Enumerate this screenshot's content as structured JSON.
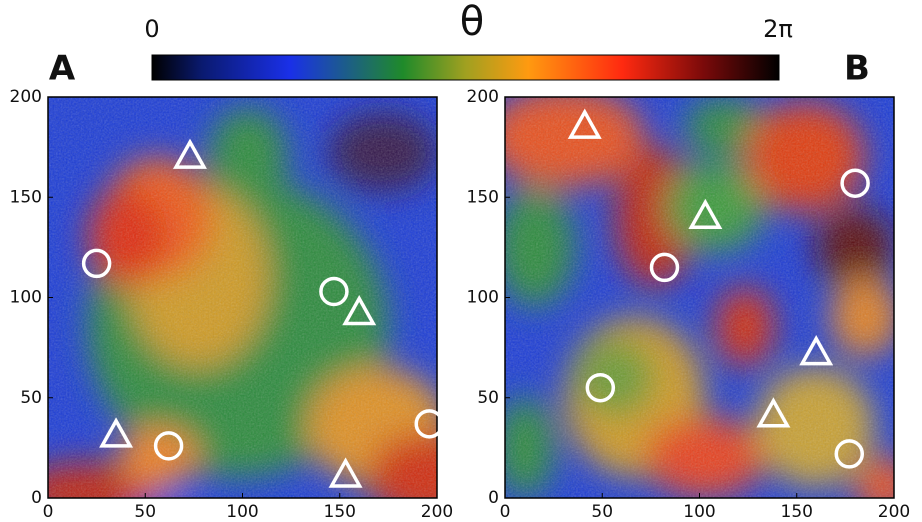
{
  "colorbar": {
    "title": "θ",
    "min_label": "0",
    "max_label": "2π"
  },
  "chart_data": [
    {
      "type": "scatter",
      "panel_label": "A",
      "xlim": [
        0,
        200
      ],
      "ylim": [
        0,
        200
      ],
      "xticks": [
        0,
        50,
        100,
        150,
        200
      ],
      "yticks": [
        0,
        50,
        100,
        150,
        200
      ],
      "series": [
        {
          "marker": "circle",
          "color": "#ffffff",
          "x": [
            25,
            62,
            147,
            196
          ],
          "values": [
            117,
            26,
            103,
            37
          ]
        },
        {
          "marker": "triangle",
          "color": "#ffffff",
          "x": [
            73,
            35,
            160,
            153
          ],
          "values": [
            170,
            31,
            92,
            11
          ]
        }
      ]
    },
    {
      "type": "scatter",
      "panel_label": "B",
      "xlim": [
        0,
        200
      ],
      "ylim": [
        0,
        200
      ],
      "xticks": [
        0,
        50,
        100,
        150,
        200
      ],
      "yticks": [
        0,
        50,
        100,
        150,
        200
      ],
      "series": [
        {
          "marker": "circle",
          "color": "#ffffff",
          "x": [
            180,
            82,
            49,
            177
          ],
          "values": [
            157,
            115,
            55,
            22
          ]
        },
        {
          "marker": "triangle",
          "color": "#ffffff",
          "x": [
            41,
            103,
            160,
            138
          ],
          "values": [
            185,
            140,
            72,
            41
          ]
        }
      ]
    }
  ]
}
